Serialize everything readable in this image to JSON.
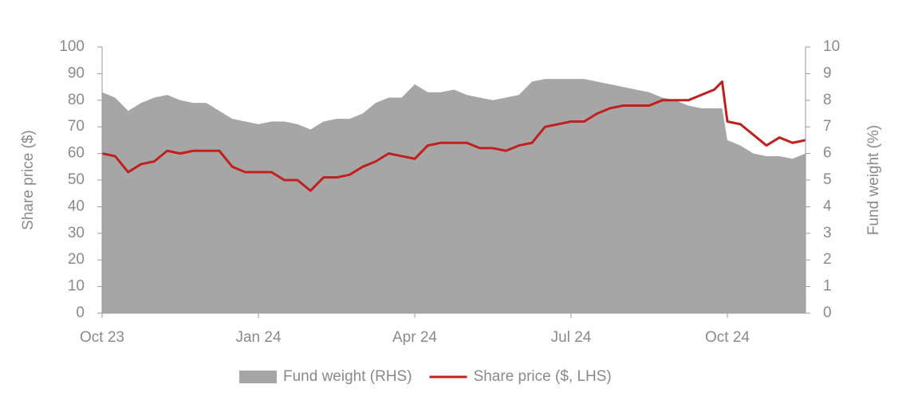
{
  "chart_data": {
    "type": "line",
    "y_label": "Share price ($)",
    "y2_label": "Fund weight (%)",
    "x": [
      0,
      0.25,
      0.5,
      0.75,
      1,
      1.25,
      1.5,
      1.75,
      2,
      2.25,
      2.5,
      2.75,
      3,
      3.25,
      3.5,
      3.75,
      4,
      4.25,
      4.5,
      4.75,
      5,
      5.25,
      5.5,
      5.75,
      6,
      6.25,
      6.5,
      6.75,
      7,
      7.25,
      7.5,
      7.75,
      8,
      8.25,
      8.5,
      8.75,
      9,
      9.25,
      9.5,
      9.75,
      10,
      10.25,
      10.5,
      10.75,
      11,
      11.25,
      11.5,
      11.75,
      11.9,
      12,
      12.25,
      12.5,
      12.75,
      13,
      13.25,
      13.5
    ],
    "series": [
      {
        "name": "Fund weight (RHS)",
        "color": "#a6a6a6",
        "axis": "y2",
        "kind": "area",
        "values": [
          8.3,
          8.1,
          7.6,
          7.9,
          8.1,
          8.2,
          8.0,
          7.9,
          7.9,
          7.6,
          7.3,
          7.2,
          7.1,
          7.2,
          7.2,
          7.1,
          6.9,
          7.2,
          7.3,
          7.3,
          7.5,
          7.9,
          8.1,
          8.1,
          8.6,
          8.3,
          8.3,
          8.4,
          8.2,
          8.1,
          8.0,
          8.1,
          8.2,
          8.7,
          8.8,
          8.8,
          8.8,
          8.8,
          8.7,
          8.6,
          8.5,
          8.4,
          8.3,
          8.1,
          8.0,
          7.8,
          7.7,
          7.7,
          7.7,
          6.5,
          6.3,
          6.0,
          5.9,
          5.9,
          5.8,
          6.0
        ]
      },
      {
        "name": "Share price ($, LHS)",
        "color": "#c0201e",
        "axis": "y",
        "kind": "line",
        "values": [
          60,
          59,
          53,
          56,
          57,
          61,
          60,
          61,
          61,
          61,
          55,
          53,
          53,
          53,
          50,
          50,
          46,
          51,
          51,
          52,
          55,
          57,
          60,
          59,
          58,
          63,
          64,
          64,
          64,
          62,
          62,
          61,
          63,
          64,
          70,
          71,
          72,
          72,
          75,
          77,
          78,
          78,
          78,
          80,
          80,
          80,
          82,
          84,
          87,
          72,
          71,
          67,
          63,
          66,
          64,
          65
        ]
      }
    ],
    "xlim": [
      0,
      13.5
    ],
    "xticks": [
      {
        "value": 0,
        "label": "Oct 23"
      },
      {
        "value": 3,
        "label": "Jan 24"
      },
      {
        "value": 6,
        "label": "Apr 24"
      },
      {
        "value": 9,
        "label": "Jul 24"
      },
      {
        "value": 12,
        "label": "Oct 24"
      }
    ],
    "ylim": [
      0,
      100
    ],
    "yticks": [
      0,
      10,
      20,
      30,
      40,
      50,
      60,
      70,
      80,
      90,
      100
    ],
    "y2lim": [
      0,
      10
    ],
    "y2ticks": [
      0,
      1,
      2,
      3,
      4,
      5,
      6,
      7,
      8,
      9,
      10
    ],
    "legend": "bottom"
  }
}
